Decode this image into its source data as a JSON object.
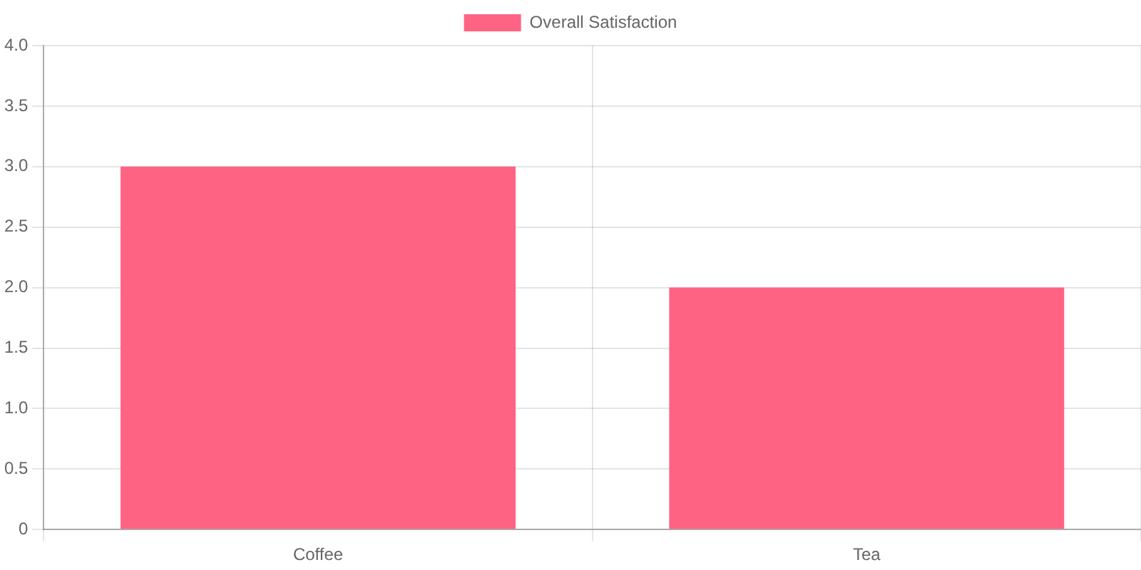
{
  "chart_data": {
    "type": "bar",
    "categories": [
      "Coffee",
      "Tea"
    ],
    "series": [
      {
        "name": "Overall Satisfaction",
        "color": "#ff6384",
        "values": [
          3,
          2
        ]
      }
    ],
    "ylim": [
      0,
      4
    ],
    "yticks": [
      0,
      0.5,
      {
        "value": 1,
        "label": "1.0"
      },
      1.5,
      {
        "value": 2,
        "label": "2.0"
      },
      2.5,
      {
        "value": 3,
        "label": "3.0"
      },
      3.5,
      {
        "value": 4,
        "label": "4.0"
      }
    ],
    "grid": true,
    "legend": "top"
  }
}
